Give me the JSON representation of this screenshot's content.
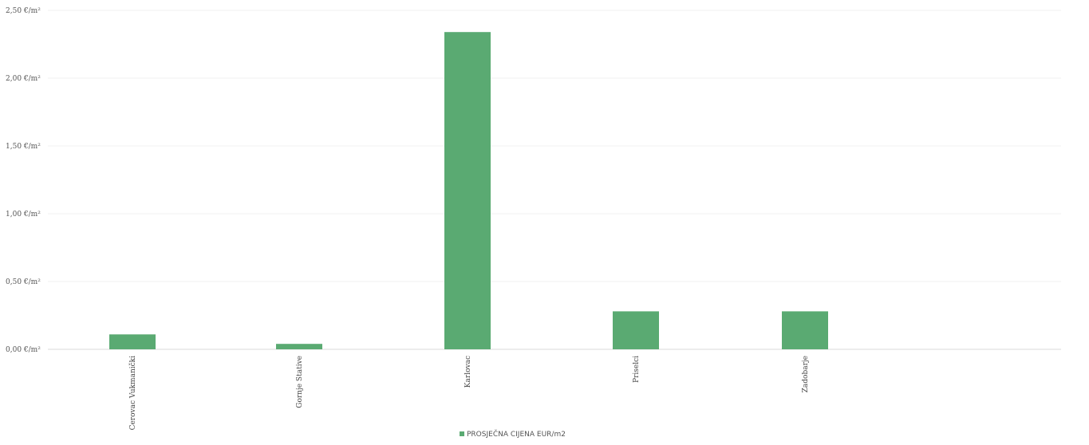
{
  "chart_data": {
    "type": "bar",
    "categories": [
      "Cerovac Vukmanički",
      "Gornje Stative",
      "Karlovac",
      "Priselci",
      "Zadobarje"
    ],
    "series": [
      {
        "name": "PROSJEČNA CIJENA EUR/m2",
        "values": [
          0.11,
          0.04,
          2.34,
          0.28,
          0.28
        ],
        "color": "#5aaa72"
      }
    ],
    "ylim": [
      0,
      2.5
    ],
    "yticks": [
      0,
      0.5,
      1,
      1.5,
      2,
      2.5
    ],
    "ytick_labels": [
      "0,00 €/m²",
      "0,50 €/m²",
      "1,00 €/m²",
      "1,50 €/m²",
      "2,00 €/m²",
      "2,50 €/m²"
    ],
    "grid": true,
    "legend_position": "bottom"
  }
}
